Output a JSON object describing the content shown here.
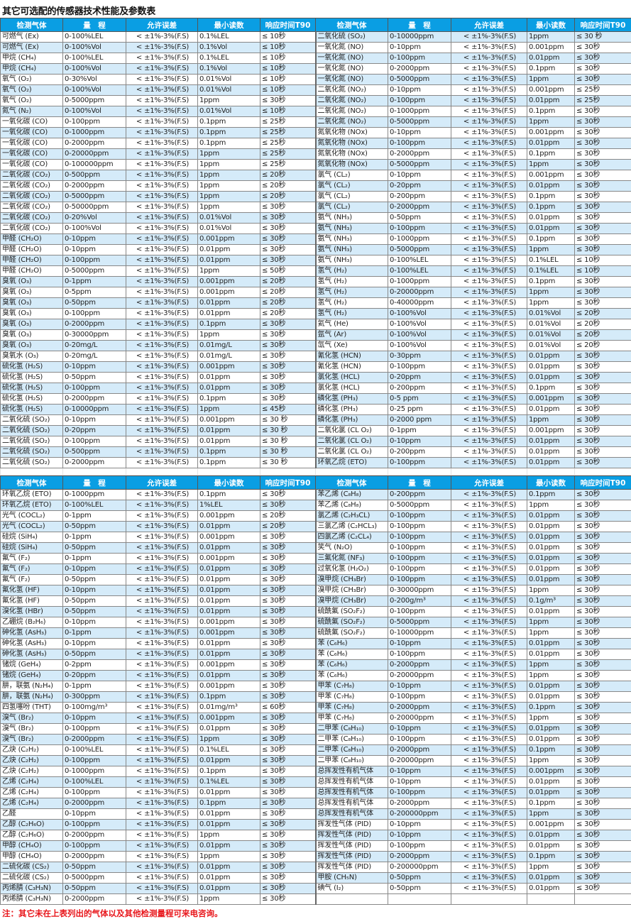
{
  "title": "其它可选配的传感器技术性能及参数表",
  "headers": [
    "检测气体",
    "量　程",
    "允许误差",
    "最小读数",
    "响应时间T90"
  ],
  "note": "注：其它未在上表列出的气体以及其他检测量程可来电咨询。",
  "colors": {
    "header_bg": "#0a9ee3",
    "stripe": "#d5ebf9",
    "note": "#e8161b"
  },
  "top_table": {
    "left": [
      [
        "可燃气 (Ex)",
        "0-100%LEL",
        "<  ±1%-3%(F.S)",
        "0.1%LEL",
        "≤ 10秒"
      ],
      [
        "可燃气 (Ex)",
        "0-100%Vol",
        "<  ±1%-3%(F.S)",
        "0.1%Vol",
        "≤ 10秒"
      ],
      [
        "甲烷 (CH₄)",
        "0-100%LEL",
        "<  ±1%-3%(F.S)",
        "0.1%LEL",
        "≤ 10秒"
      ],
      [
        "甲烷 (CH₄)",
        "0-100%Vol",
        "<  ±1%-3%(F.S)",
        "0.1%Vol",
        "≤ 10秒"
      ],
      [
        "氧气 (O₂)",
        "0-30%Vol",
        "<  ±1%-3%(F.S)",
        "0.01%Vol",
        "≤ 10秒"
      ],
      [
        "氧气 (O₂)",
        "0-100%Vol",
        "<  ±1%-3%(F.S)",
        "0.01%Vol",
        "≤ 10秒"
      ],
      [
        "氧气 (O₂)",
        "0-5000ppm",
        "<  ±1%-3%(F.S)",
        "1ppm",
        "≤ 30秒"
      ],
      [
        "氮气 (N₂)",
        "0-100%Vol",
        "<  ±1%-3%(F.S)",
        "0.01%Vol",
        "≤ 10秒"
      ],
      [
        "一氧化碳 (CO)",
        "0-100ppm",
        "<  ±1%-3%(F.S)",
        "0.1ppm",
        "≤ 25秒"
      ],
      [
        "一氧化碳 (CO)",
        "0-1000ppm",
        "<  ±1%-3%(F.S)",
        "0.1ppm",
        "≤ 25秒"
      ],
      [
        "一氧化碳 (CO)",
        "0-2000ppm",
        "<  ±1%-3%(F.S)",
        "0.1ppm",
        "≤ 25秒"
      ],
      [
        "一氧化碳 (CO)",
        "0-20000ppm",
        "<  ±1%-3%(F.S)",
        "1ppm",
        "≤ 25秒"
      ],
      [
        "一氧化碳 (CO)",
        "0-100000ppm",
        "<  ±1%-3%(F.S)",
        "1ppm",
        "≤ 25秒"
      ],
      [
        "二氧化碳 (CO₂)",
        "0-500ppm",
        "<  ±1%-3%(F.S)",
        "1ppm",
        "≤ 20秒"
      ],
      [
        "二氧化碳 (CO₂)",
        "0-2000ppm",
        "<  ±1%-3%(F.S)",
        "1ppm",
        "≤ 20秒"
      ],
      [
        "二氧化碳 (CO₂)",
        "0-5000ppm",
        "<  ±1%-3%(F.S)",
        "1ppm",
        "≤ 20秒"
      ],
      [
        "二氧化碳 (CO₂)",
        "0-50000ppm",
        "<  ±1%-3%(F.S)",
        "1ppm",
        "≤ 30秒"
      ],
      [
        "二氧化碳 (CO₂)",
        "0-20%Vol",
        "<  ±1%-3%(F.S)",
        "0.01%Vol",
        "≤ 30秒"
      ],
      [
        "二氧化碳 (CO₂)",
        "0-100%Vol",
        "<  ±1%-3%(F.S)",
        "0.01%Vol",
        "≤ 30秒"
      ],
      [
        "甲醛 (CH₂O)",
        "0-10ppm",
        "<  ±1%-3%(F.S)",
        "0.001ppm",
        "≤ 30秒"
      ],
      [
        "甲醛 (CH₂O)",
        "0-10ppm",
        "<  ±1%-3%(F.S)",
        "0.01ppm",
        "≤ 30秒"
      ],
      [
        "甲醛 (CH₂O)",
        "0-100ppm",
        "<  ±1%-3%(F.S)",
        "0.01ppm",
        "≤ 30秒"
      ],
      [
        "甲醛 (CH₂O)",
        "0-5000ppm",
        "<  ±1%-3%(F.S)",
        "1ppm",
        "≤ 50秒"
      ],
      [
        "臭氧 (O₃)",
        "0-1ppm",
        "<  ±1%-3%(F.S)",
        "0.001ppm",
        "≤ 20秒"
      ],
      [
        "臭氧 (O₃)",
        "0-5ppm",
        "<  ±1%-3%(F.S)",
        "0.001ppm",
        "≤ 20秒"
      ],
      [
        "臭氧 (O₃)",
        "0-50ppm",
        "<  ±1%-3%(F.S)",
        "0.01ppm",
        "≤ 20秒"
      ],
      [
        "臭氧 (O₃)",
        "0-100ppm",
        "<  ±1%-3%(F.S)",
        "0.01ppm",
        "≤ 20秒"
      ],
      [
        "臭氧 (O₃)",
        "0-2000ppm",
        "<  ±1%-3%(F.S)",
        "0.1ppm",
        "≤ 30秒"
      ],
      [
        "臭氧 (O₃)",
        "0-30000ppm",
        "<  ±1%-3%(F.S)",
        "1ppm",
        "≤ 30秒"
      ],
      [
        "臭氧 (O₃)",
        "0-20mg/L",
        "<  ±1%-3%(F.S)",
        "0.01mg/L",
        "≤ 30秒"
      ],
      [
        "臭氧水 (O₃)",
        "0-20mg/L",
        "<  ±1%-3%(F.S)",
        "0.01mg/L",
        "≤ 30秒"
      ],
      [
        "硫化氢 (H₂S)",
        "0-10ppm",
        "<  ±1%-3%(F.S)",
        "0.001ppm",
        "≤ 30秒"
      ],
      [
        "硫化氢 (H₂S)",
        "0-50ppm",
        "<  ±1%-3%(F.S)",
        "0.01ppm",
        "≤ 30秒"
      ],
      [
        "硫化氢 (H₂S)",
        "0-100ppm",
        "<  ±1%-3%(F.S)",
        "0.01ppm",
        "≤ 30秒"
      ],
      [
        "硫化氢 (H₂S)",
        "0-2000ppm",
        "<  ±1%-3%(F.S)",
        "0.1ppm",
        "≤ 30秒"
      ],
      [
        "硫化氢 (H₂S)",
        "0-10000ppm",
        "<  ±1%-3%(F.S)",
        "1ppm",
        "≤ 45秒"
      ],
      [
        "二氧化硫 (SO₂)",
        "0-10ppm",
        "<  ±1%-3%(F.S)",
        "0.001ppm",
        "≤ 30 秒"
      ],
      [
        "二氧化硫 (SO₂)",
        "0-20ppm",
        "<  ±1%-3%(F.S)",
        "0.01ppm",
        "≤ 30 秒"
      ],
      [
        "二氧化硫 (SO₂)",
        "0-100ppm",
        "<  ±1%-3%(F.S)",
        "0.01ppm",
        "≤ 30 秒"
      ],
      [
        "二氧化硫 (SO₂)",
        "0-500ppm",
        "<  ±1%-3%(F.S)",
        "0.1ppm",
        "≤ 30 秒"
      ],
      [
        "二氧化硫 (SO₂)",
        "0-2000ppm",
        "<  ±1%-3%(F.S)",
        "0.1ppm",
        "≤ 30 秒"
      ]
    ],
    "right": [
      [
        "二氧化硫 (SO₂)",
        "0-10000ppm",
        "<  ±1%-3%(F.S)",
        "1ppm",
        "≤ 30 秒"
      ],
      [
        "一氧化氮 (NO)",
        "0-10ppm",
        "<  ±1%-3%(F.S)",
        "0.001ppm",
        "≤ 30秒"
      ],
      [
        "一氧化氮 (NO)",
        "0-100ppm",
        "<  ±1%-3%(F.S)",
        "0.01ppm",
        "≤ 30秒"
      ],
      [
        "一氧化氮 (NO)",
        "0-2000ppm",
        "<  ±1%-3%(F.S)",
        "0.1ppm",
        "≤ 30秒"
      ],
      [
        "一氧化氮 (NO)",
        "0-5000ppm",
        "<  ±1%-3%(F.S)",
        "1ppm",
        "≤ 30秒"
      ],
      [
        "二氧化氮 (NO₂)",
        "0-10ppm",
        "<  ±1%-3%(F.S)",
        "0.001ppm",
        "≤ 25秒"
      ],
      [
        "二氧化氮 (NO₂)",
        "0-100ppm",
        "<  ±1%-3%(F.S)",
        "0.01ppm",
        "≤ 25秒"
      ],
      [
        "二氧化氮 (NO₂)",
        "0-1000ppm",
        "<  ±1%-3%(F.S)",
        "0.1ppm",
        "≤ 30秒"
      ],
      [
        "二氧化氮 (NO₂)",
        "0-5000ppm",
        "<  ±1%-3%(F.S)",
        "1ppm",
        "≤ 30秒"
      ],
      [
        "氮氧化物 (NOx)",
        "0-10ppm",
        "<  ±1%-3%(F.S)",
        "0.001ppm",
        "≤ 30秒"
      ],
      [
        "氮氧化物 (NOx)",
        "0-100ppm",
        "<  ±1%-3%(F.S)",
        "0.01ppm",
        "≤ 30秒"
      ],
      [
        "氮氧化物 (NOx)",
        "0-2000ppm",
        "<  ±1%-3%(F.S)",
        "0.1ppm",
        "≤ 30秒"
      ],
      [
        "氮氧化物 (NOx)",
        "0-5000ppm",
        "<  ±1%-3%(F.S)",
        "1ppm",
        "≤ 30秒"
      ],
      [
        "氯气 (CL₂)",
        "0-10ppm",
        "<  ±1%-3%(F.S)",
        "0.001ppm",
        "≤ 30秒"
      ],
      [
        "氯气 (CL₂)",
        "0-20ppm",
        "<  ±1%-3%(F.S)",
        "0.01ppm",
        "≤ 30秒"
      ],
      [
        "氯气 (CL₂)",
        "0-200ppm",
        "<  ±1%-3%(F.S)",
        "0.1ppm",
        "≤ 30秒"
      ],
      [
        "氯气 (CL₂)",
        "0-2000ppm",
        "<  ±1%-3%(F.S)",
        "0.1ppm",
        "≤ 30秒"
      ],
      [
        "氨气 (NH₃)",
        "0-50ppm",
        "<  ±1%-3%(F.S)",
        "0.01ppm",
        "≤ 30秒"
      ],
      [
        "氨气 (NH₃)",
        "0-100ppm",
        "<  ±1%-3%(F.S)",
        "0.01ppm",
        "≤ 30秒"
      ],
      [
        "氨气 (NH₃)",
        "0-1000ppm",
        "<  ±1%-3%(F.S)",
        "0.1ppm",
        "≤ 30秒"
      ],
      [
        "氨气 (NH₃)",
        "0-5000ppm",
        "<  ±1%-3%(F.S)",
        "1ppm",
        "≤ 30秒"
      ],
      [
        "氨气 (NH₃)",
        "0-100%LEL",
        "<  ±1%-3%(F.S)",
        "0.1%LEL",
        "≤ 10秒"
      ],
      [
        "氢气 (H₂)",
        "0-100%LEL",
        "<  ±1%-3%(F.S)",
        "0.1%LEL",
        "≤ 10秒"
      ],
      [
        "氢气 (H₂)",
        "0-1000ppm",
        "<  ±1%-3%(F.S)",
        "0.1ppm",
        "≤ 30秒"
      ],
      [
        "氢气 (H₂)",
        "0-20000ppm",
        "<  ±1%-3%(F.S)",
        "1ppm",
        "≤ 30秒"
      ],
      [
        "氢气 (H₂)",
        "0-40000ppm",
        "<  ±1%-3%(F.S)",
        "1ppm",
        "≤ 30秒"
      ],
      [
        "氢气 (H₂)",
        "0-100%Vol",
        "<  ±1%-3%(F.S)",
        "0.01%Vol",
        "≤ 20秒"
      ],
      [
        "氦气 (He)",
        "0-100%Vol",
        "<  ±1%-3%(F.S)",
        "0.01%Vol",
        "≤ 20秒"
      ],
      [
        "氩气 (Ar)",
        "0-100%Vol",
        "<  ±1%-3%(F.S)",
        "0.01%Vol",
        "≤ 20秒"
      ],
      [
        "氙气 (Xe)",
        "0-100%Vol",
        "<  ±1%-3%(F.S)",
        "0.01%Vol",
        "≤ 20秒"
      ],
      [
        "氰化氢 (HCN)",
        "0-30ppm",
        "<  ±1%-3%(F.S)",
        "0.01ppm",
        "≤ 30秒"
      ],
      [
        "氰化氢 (HCN)",
        "0-100ppm",
        "<  ±1%-3%(F.S)",
        "0.01ppm",
        "≤ 30秒"
      ],
      [
        "氯化氢 (HCL)",
        "0-20ppm",
        "<  ±1%-3%(F.S)",
        "0.01ppm",
        "≤ 30秒"
      ],
      [
        "氯化氢 (HCL)",
        "0-200ppm",
        "<  ±1%-3%(F.S)",
        "0.1ppm",
        "≤ 30秒"
      ],
      [
        "磷化氢 (PH₃)",
        "0-5 ppm",
        "<  ±1%-3%(F.S)",
        "0.001ppm",
        "≤ 30秒"
      ],
      [
        "磷化氢 (PH₃)",
        "0-25 ppm",
        "<  ±1%-3%(F.S)",
        "0.01ppm",
        "≤ 30秒"
      ],
      [
        "磷化氢 (PH₃)",
        "0-2000 ppm",
        "<  ±1%-3%(F.S)",
        "1ppm",
        "≤ 30秒"
      ],
      [
        "二氧化氯 (CL O₂)",
        "0-1ppm",
        "<  ±1%-3%(F.S)",
        "0.001ppm",
        "≤ 30秒"
      ],
      [
        "二氧化氯 (CL O₂)",
        "0-10ppm",
        "<  ±1%-3%(F.S)",
        "0.01ppm",
        "≤ 30秒"
      ],
      [
        "二氧化氯 (CL O₂)",
        "0-200ppm",
        "<  ±1%-3%(F.S)",
        "0.01ppm",
        "≤ 30秒"
      ],
      [
        "环氧乙烷 (ETO)",
        "0-100ppm",
        "<  ±1%-3%(F.S)",
        "0.01ppm",
        "≤ 30秒"
      ]
    ]
  },
  "bottom_table": {
    "left": [
      [
        "环氧乙烷 (ETO)",
        "0-1000ppm",
        "<  ±1%-3%(F.S)",
        "0.1ppm",
        "≤ 30秒"
      ],
      [
        "环氧乙烷 (ETO)",
        "0-100%LEL",
        "<  ±1%-3%(F.S)",
        "1%LEL",
        "≤ 30秒"
      ],
      [
        "光气 (COCL₂)",
        "0-1ppm",
        "<  ±1%-3%(F.S)",
        "0.001ppm",
        "≤ 20秒"
      ],
      [
        "光气 (COCL₂)",
        "0-50ppm",
        "<  ±1%-3%(F.S)",
        "0.01ppm",
        "≤ 20秒"
      ],
      [
        "硅烷 (SiH₄)",
        "0-1ppm",
        "<  ±1%-3%(F.S)",
        "0.001ppm",
        "≤ 30秒"
      ],
      [
        "硅烷 (SiH₄)",
        "0-50ppm",
        "<  ±1%-3%(F.S)",
        "0.01ppm",
        "≤ 30秒"
      ],
      [
        "氟气 (F₂)",
        "0-1ppm",
        "<  ±1%-3%(F.S)",
        "0.001ppm",
        "≤ 30秒"
      ],
      [
        "氟气 (F₂)",
        "0-10ppm",
        "<  ±1%-3%(F.S)",
        "0.01ppm",
        "≤ 30秒"
      ],
      [
        "氟气 (F₂)",
        "0-50ppm",
        "<  ±1%-3%(F.S)",
        "0.01ppm",
        "≤ 30秒"
      ],
      [
        "氟化氢 (HF)",
        "0-10ppm",
        "<  ±1%-3%(F.S)",
        "0.01ppm",
        "≤ 30秒"
      ],
      [
        "氟化氢 (HF)",
        "0-50ppm",
        "<  ±1%-3%(F.S)",
        "0.01ppm",
        "≤ 30秒"
      ],
      [
        "溴化氢 (HBr)",
        "0-50ppm",
        "<  ±1%-3%(F.S)",
        "0.01ppm",
        "≤ 30秒"
      ],
      [
        "乙硼烷 (B₂H₆)",
        "0-10ppm",
        "<  ±1%-3%(F.S)",
        "0.001ppm",
        "≤ 30秒"
      ],
      [
        "砷化氢 (AsH₃)",
        "0-1ppm",
        "<  ±1%-3%(F.S)",
        "0.001ppm",
        "≤ 30秒"
      ],
      [
        "砷化氢 (AsH₃)",
        "0-10ppm",
        "<  ±1%-3%(F.S)",
        "0.01ppm",
        "≤ 30秒"
      ],
      [
        "砷化氢 (AsH₃)",
        "0-50ppm",
        "<  ±1%-3%(F.S)",
        "0.01ppm",
        "≤ 30秒"
      ],
      [
        "锗烷 (GeH₄)",
        "0-2ppm",
        "<  ±1%-3%(F.S)",
        "0.001ppm",
        "≤ 30秒"
      ],
      [
        "锗烷 (GeH₄)",
        "0-20ppm",
        "<  ±1%-3%(F.S)",
        "0.01ppm",
        "≤ 30秒"
      ],
      [
        "肼，联氨 (N₂H₄)",
        "0-1ppm",
        "<  ±1%-3%(F.S)",
        "0.001ppm",
        "≤ 30秒"
      ],
      [
        "肼，联氨 (N₂H₄)",
        "0-300ppm",
        "<  ±1%-3%(F.S)",
        "0.1ppm",
        "≤ 30秒"
      ],
      [
        "四氢噻吩 (THT)",
        "0-100mg/m³",
        "<  ±1%-3%(F.S)",
        "0.01mg/m³",
        "≤ 60秒"
      ],
      [
        "溴气 (Br₂)",
        "0-10ppm",
        "<  ±1%-3%(F.S)",
        "0.001ppm",
        "≤ 30秒"
      ],
      [
        "溴气 (Br₂)",
        "0-100ppm",
        "<  ±1%-3%(F.S)",
        "0.01ppm",
        "≤ 30秒"
      ],
      [
        "溴气 (Br₂)",
        "0-2000ppm",
        "<  ±1%-3%(F.S)",
        "1ppm",
        "≤ 30秒"
      ],
      [
        "乙炔 (C₂H₂)",
        "0-100%LEL",
        "<  ±1%-3%(F.S)",
        "0.1%LEL",
        "≤ 30秒"
      ],
      [
        "乙炔 (C₂H₂)",
        "0-100ppm",
        "<  ±1%-3%(F.S)",
        "0.01ppm",
        "≤ 30秒"
      ],
      [
        "乙炔 (C₂H₂)",
        "0-1000ppm",
        "<  ±1%-3%(F.S)",
        "0.1ppm",
        "≤ 30秒"
      ],
      [
        "乙烯 (C₂H₄)",
        "0-100%LEL",
        "<  ±1%-3%(F.S)",
        "0.1%LEL",
        "≤ 30秒"
      ],
      [
        "乙烯 (C₂H₄)",
        "0-100ppm",
        "<  ±1%-3%(F.S)",
        "0.01ppm",
        "≤ 30秒"
      ],
      [
        "乙烯 (C₂H₄)",
        "0-2000ppm",
        "<  ±1%-3%(F.S)",
        "0.1ppm",
        "≤ 30秒"
      ],
      [
        "乙醛",
        "0-10ppm",
        "<  ±1%-3%(F.S)",
        "0.01ppm",
        "≤ 30秒"
      ],
      [
        "乙醇 (C₂H₆O)",
        "0-100ppm",
        "<  ±1%-3%(F.S)",
        "0.01ppm",
        "≤ 30秒"
      ],
      [
        "乙醇 (C₂H₆O)",
        "0-2000ppm",
        "<  ±1%-3%(F.S)",
        "1ppm",
        "≤ 30秒"
      ],
      [
        "甲醇 (CH₄O)",
        "0-100ppm",
        "<  ±1%-3%(F.S)",
        "0.01ppm",
        "≤ 30秒"
      ],
      [
        "甲醇 (CH₄O)",
        "0-2000ppm",
        "<  ±1%-3%(F.S)",
        "1ppm",
        "≤ 30秒"
      ],
      [
        "二硫化碳 (CS₂)",
        "0-50ppm",
        "<  ±1%-3%(F.S)",
        "0.01ppm",
        "≤ 30秒"
      ],
      [
        "二硫化碳 (CS₂)",
        "0-5000ppm",
        "<  ±1%-3%(F.S)",
        "0.01ppm",
        "≤ 30秒"
      ],
      [
        "丙烯腈 (C₃H₃N)",
        "0-50ppm",
        "<  ±1%-3%(F.S)",
        "0.01ppm",
        "≤ 30秒"
      ],
      [
        "丙烯腈 (C₃H₃N)",
        "0-2000ppm",
        "<  ±1%-3%(F.S)",
        "1ppm",
        "≤ 30秒"
      ]
    ],
    "right": [
      [
        "苯乙烯 (C₈H₈)",
        "0-200ppm",
        "<  ±1%-3%(F.S)",
        "0.1ppm",
        "≤ 30秒"
      ],
      [
        "苯乙烯 (C₈H₈)",
        "0-5000ppm",
        "<  ±1%-3%(F.S)",
        "1ppm",
        "≤ 30秒"
      ],
      [
        "氯乙烯 (C₂H₃CL)",
        "0-100ppm",
        "<  ±1%-3%(F.S)",
        "0.01ppm",
        "≤ 30秒"
      ],
      [
        "三氯乙烯 (C₂HCL₃)",
        "0-100ppm",
        "<  ±1%-3%(F.S)",
        "0.01ppm",
        "≤ 30秒"
      ],
      [
        "四氯乙烯 (C₂CL₄)",
        "0-100ppm",
        "<  ±1%-3%(F.S)",
        "0.01ppm",
        "≤ 30秒"
      ],
      [
        "笑气 (N₂O)",
        "0-100ppm",
        "<  ±1%-3%(F.S)",
        "0.01ppm",
        "≤ 30秒"
      ],
      [
        "三氟化氮 (NF₃)",
        "0-100ppm",
        "<  ±1%-3%(F.S)",
        "0.01ppm",
        "≤ 30秒"
      ],
      [
        "过氧化氢 (H₂O₂)",
        "0-100ppm",
        "<  ±1%-3%(F.S)",
        "0.01ppm",
        "≤ 30秒"
      ],
      [
        "溴甲烷 (CH₃Br)",
        "0-100ppm",
        "<  ±1%-3%(F.S)",
        "0.01ppm",
        "≤ 30秒"
      ],
      [
        "溴甲烷 (CH₃Br)",
        "0-30000ppm",
        "<  ±1%-3%(F.S)",
        "1ppm",
        "≤ 30秒"
      ],
      [
        "溴甲烷 (CH₃Br)",
        "0-200g/m³",
        "<  ±1%-3%(F.S)",
        "0.1g/m³",
        "≤ 30秒"
      ],
      [
        "硫酰氟 (SO₂F₂)",
        "0-100ppm",
        "<  ±1%-3%(F.S)",
        "0.01ppm",
        "≤ 30秒"
      ],
      [
        "硫酰氟 (SO₂F₂)",
        "0-5000ppm",
        "<  ±1%-3%(F.S)",
        "1ppm",
        "≤ 30秒"
      ],
      [
        "硫酰氟 (SO₂F₂)",
        "0-10000ppm",
        "<  ±1%-3%(F.S)",
        "1ppm",
        "≤ 30秒"
      ],
      [
        "苯 (C₆H₆)",
        "0-10ppm",
        "<  ±1%-3%(F.S)",
        "0.01ppm",
        "≤ 30秒"
      ],
      [
        "苯 (C₆H₆)",
        "0-100ppm",
        "<  ±1%-3%(F.S)",
        "0.01ppm",
        "≤ 30秒"
      ],
      [
        "苯 (C₆H₆)",
        "0-2000ppm",
        "<  ±1%-3%(F.S)",
        "1ppm",
        "≤ 30秒"
      ],
      [
        "苯 (C₆H₆)",
        "0-20000ppm",
        "<  ±1%-3%(F.S)",
        "1ppm",
        "≤ 30秒"
      ],
      [
        "甲苯 (C₇H₈)",
        "0-10ppm",
        "<  ±1%-3%(F.S)",
        "0.01ppm",
        "≤ 30秒"
      ],
      [
        "甲苯 (C₇H₈)",
        "0-100ppm",
        "<  ±1%-3%(F.S)",
        "0.01ppm",
        "≤ 30秒"
      ],
      [
        "甲苯 (C₇H₈)",
        "0-2000ppm",
        "<  ±1%-3%(F.S)",
        "0.1ppm",
        "≤ 30秒"
      ],
      [
        "甲苯 (C₇H₈)",
        "0-20000ppm",
        "<  ±1%-3%(F.S)",
        "1ppm",
        "≤ 30秒"
      ],
      [
        "二甲苯 (C₈H₁₀)",
        "0-10ppm",
        "<  ±1%-3%(F.S)",
        "0.01ppm",
        "≤ 30秒"
      ],
      [
        "二甲苯 (C₈H₁₀)",
        "0-100ppm",
        "<  ±1%-3%(F.S)",
        "0.01ppm",
        "≤ 30秒"
      ],
      [
        "二甲苯 (C₈H₁₀)",
        "0-2000ppm",
        "<  ±1%-3%(F.S)",
        "0.1ppm",
        "≤ 30秒"
      ],
      [
        "二甲苯 (C₈H₁₀)",
        "0-20000ppm",
        "<  ±1%-3%(F.S)",
        "1ppm",
        "≤ 30秒"
      ],
      [
        "总挥发性有机气体",
        "0-10ppm",
        "<  ±1%-3%(F.S)",
        "0.001ppm",
        "≤ 30秒"
      ],
      [
        "总挥发性有机气体",
        "0-10ppm",
        "<  ±1%-3%(F.S)",
        "0.01ppm",
        "≤ 30秒"
      ],
      [
        "总挥发性有机气体",
        "0-100ppm",
        "<  ±1%-3%(F.S)",
        "0.01ppm",
        "≤ 30秒"
      ],
      [
        "总挥发性有机气体",
        "0-2000ppm",
        "<  ±1%-3%(F.S)",
        "0.1ppm",
        "≤ 30秒"
      ],
      [
        "总挥发性有机气体",
        "0-200000ppm",
        "<  ±1%-3%(F.S)",
        "1ppm",
        "≤ 30秒"
      ],
      [
        "挥发性气体 (PID)",
        "0-10ppm",
        "<  ±1%-3%(F.S)",
        "0.001ppm",
        "≤ 30秒"
      ],
      [
        "挥发性气体 (PID)",
        "0-10ppm",
        "<  ±1%-3%(F.S)",
        "0.01ppm",
        "≤ 30秒"
      ],
      [
        "挥发性气体 (PID)",
        "0-100ppm",
        "<  ±1%-3%(F.S)",
        "0.01ppm",
        "≤ 30秒"
      ],
      [
        "挥发性气体 (PID)",
        "0-2000ppm",
        "<  ±1%-3%(F.S)",
        "0.1ppm",
        "≤ 30秒"
      ],
      [
        "挥发性气体 (PID)",
        "0-200000ppm",
        "<  ±1%-3%(F.S)",
        "1ppm",
        "≤ 30秒"
      ],
      [
        "甲胺 (CH₅N)",
        "0-50ppm",
        "<  ±1%-3%(F.S)",
        "0.01ppm",
        "≤ 30秒"
      ],
      [
        "碘气 (I₂)",
        "0-50ppm",
        "<  ±1%-3%(F.S)",
        "0.01ppm",
        "≤ 30秒"
      ]
    ]
  }
}
